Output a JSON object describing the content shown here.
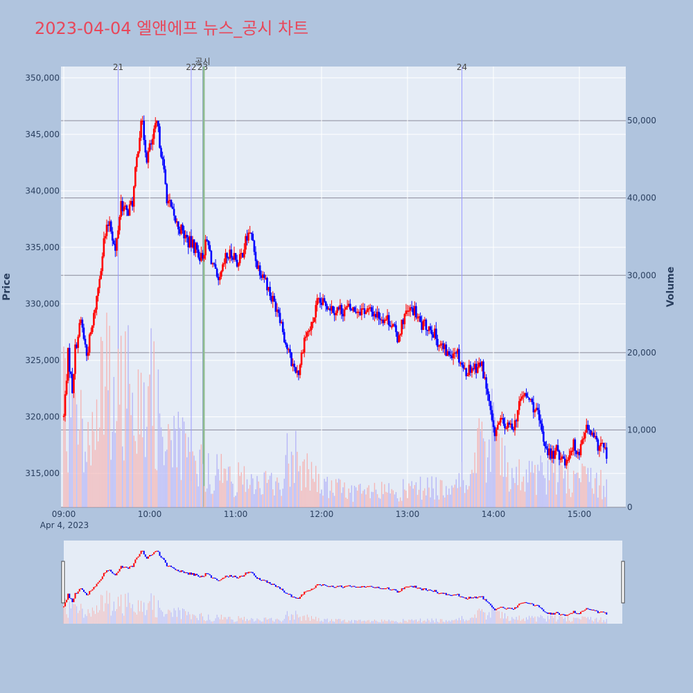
{
  "title": "2023-04-04 엘앤에프 뉴스_공시 차트",
  "chart_data": {
    "type": "candlestick",
    "title": "2023-04-04 엘앤에프 뉴스_공시 차트",
    "ylabel": "Price",
    "y2label": "Volume",
    "price_range": [
      312000,
      351000
    ],
    "volume_range": [
      0,
      57000
    ],
    "x_range": [
      "09:00",
      "15:30"
    ],
    "date_label": "Apr 4, 2023",
    "x_ticks": [
      "09:00",
      "10:00",
      "11:00",
      "12:00",
      "13:00",
      "14:00",
      "15:00"
    ],
    "y_ticks": [
      "315,000",
      "320,000",
      "325,000",
      "330,000",
      "335,000",
      "340,000",
      "345,000",
      "350,000"
    ],
    "y2_ticks": [
      "0",
      "10,000",
      "20,000",
      "30,000",
      "40,000",
      "50,000"
    ],
    "colors": {
      "up": "#ff0000",
      "down": "#0000ff",
      "news_line": "#9999ff",
      "disclosure_line": "#8fbc8f",
      "volume_up": "#f4b6b6",
      "volume_down": "#b7b7f7"
    },
    "markers": [
      {
        "label": "21",
        "time": "09:38",
        "type": "news"
      },
      {
        "label": "22",
        "time": "10:29",
        "type": "news"
      },
      {
        "label": "23",
        "time": "10:37",
        "type": "news"
      },
      {
        "label": "공시",
        "time": "10:37",
        "type": "disclosure"
      },
      {
        "label": "24",
        "time": "13:38",
        "type": "news"
      }
    ],
    "price_keypoints": [
      [
        "09:00",
        320000
      ],
      [
        "09:03",
        325500
      ],
      [
        "09:06",
        322500
      ],
      [
        "09:08",
        326000
      ],
      [
        "09:12",
        328500
      ],
      [
        "09:16",
        325500
      ],
      [
        "09:20",
        328000
      ],
      [
        "09:24",
        331500
      ],
      [
        "09:28",
        335500
      ],
      [
        "09:32",
        337500
      ],
      [
        "09:36",
        334500
      ],
      [
        "09:40",
        339000
      ],
      [
        "09:44",
        338000
      ],
      [
        "09:48",
        339000
      ],
      [
        "09:52",
        344000
      ],
      [
        "09:54",
        346500
      ],
      [
        "09:58",
        343000
      ],
      [
        "10:02",
        344500
      ],
      [
        "10:05",
        346000
      ],
      [
        "10:08",
        343500
      ],
      [
        "10:12",
        339500
      ],
      [
        "10:17",
        337500
      ],
      [
        "10:22",
        336500
      ],
      [
        "10:27",
        335500
      ],
      [
        "10:32",
        335000
      ],
      [
        "10:36",
        334000
      ],
      [
        "10:40",
        335500
      ],
      [
        "10:44",
        333500
      ],
      [
        "10:48",
        331500
      ],
      [
        "10:53",
        334000
      ],
      [
        "10:58",
        334500
      ],
      [
        "11:02",
        333500
      ],
      [
        "11:07",
        335500
      ],
      [
        "11:10",
        336500
      ],
      [
        "11:15",
        333500
      ],
      [
        "11:20",
        332500
      ],
      [
        "11:25",
        330500
      ],
      [
        "11:30",
        329500
      ],
      [
        "11:35",
        326500
      ],
      [
        "11:40",
        324500
      ],
      [
        "11:44",
        324000
      ],
      [
        "11:48",
        327000
      ],
      [
        "11:53",
        328000
      ],
      [
        "11:57",
        330000
      ],
      [
        "12:03",
        330000
      ],
      [
        "12:10",
        329500
      ],
      [
        "12:20",
        329500
      ],
      [
        "12:30",
        329500
      ],
      [
        "12:40",
        329000
      ],
      [
        "12:48",
        328500
      ],
      [
        "12:53",
        327000
      ],
      [
        "12:58",
        329000
      ],
      [
        "13:04",
        329500
      ],
      [
        "13:10",
        328000
      ],
      [
        "13:16",
        328000
      ],
      [
        "13:22",
        326500
      ],
      [
        "13:28",
        325500
      ],
      [
        "13:34",
        326000
      ],
      [
        "13:40",
        324000
      ],
      [
        "13:46",
        324500
      ],
      [
        "13:52",
        324500
      ],
      [
        "13:56",
        322000
      ],
      [
        "14:00",
        318500
      ],
      [
        "14:05",
        319500
      ],
      [
        "14:10",
        319000
      ],
      [
        "14:15",
        319500
      ],
      [
        "14:20",
        322000
      ],
      [
        "14:25",
        321500
      ],
      [
        "14:30",
        320500
      ],
      [
        "14:35",
        318000
      ],
      [
        "14:40",
        316500
      ],
      [
        "14:45",
        317000
      ],
      [
        "14:50",
        316000
      ],
      [
        "14:55",
        317500
      ],
      [
        "15:00",
        317000
      ],
      [
        "15:04",
        319000
      ],
      [
        "15:08",
        318500
      ],
      [
        "15:12",
        317500
      ],
      [
        "15:16",
        317500
      ],
      [
        "15:19",
        316500
      ]
    ],
    "volume_profile": [
      [
        "09:00",
        14000
      ],
      [
        "09:20",
        10000
      ],
      [
        "09:30",
        18000
      ],
      [
        "09:40",
        15000
      ],
      [
        "09:48",
        22000
      ],
      [
        "10:00",
        16000
      ],
      [
        "10:15",
        10000
      ],
      [
        "10:30",
        6000
      ],
      [
        "11:00",
        4000
      ],
      [
        "11:30",
        3000
      ],
      [
        "11:40",
        9000
      ],
      [
        "11:50",
        5000
      ],
      [
        "12:00",
        3000
      ],
      [
        "12:30",
        2000
      ],
      [
        "13:00",
        2500
      ],
      [
        "13:30",
        3000
      ],
      [
        "13:45",
        5000
      ],
      [
        "13:58",
        12000
      ],
      [
        "14:10",
        4000
      ],
      [
        "14:40",
        5000
      ],
      [
        "15:00",
        4000
      ],
      [
        "15:20",
        3000
      ]
    ]
  },
  "range_slider": {
    "name": "range-slider"
  }
}
